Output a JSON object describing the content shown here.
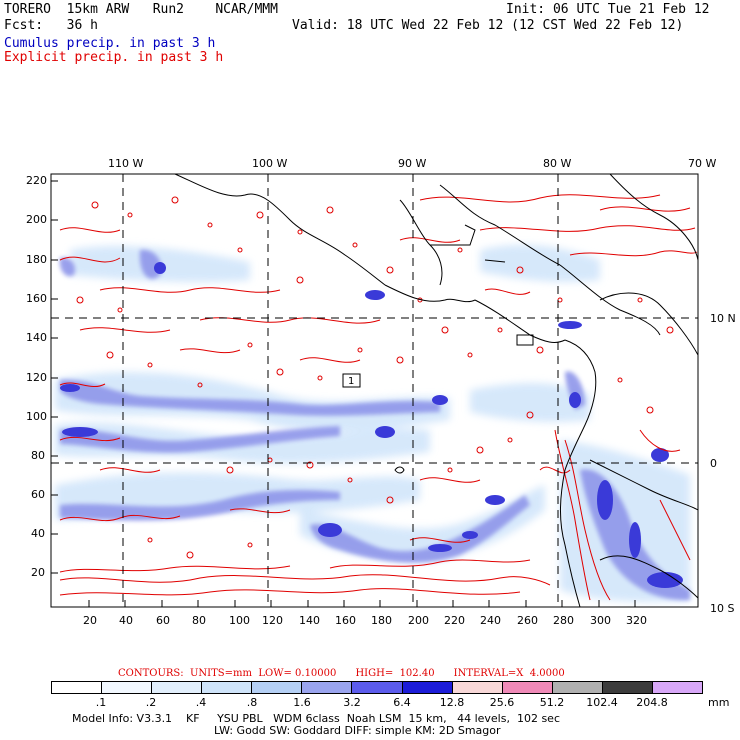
{
  "header": {
    "model": "TORERO  15km ARW   Run2    NCAR/MMM",
    "init": "Init: 06 UTC Tue 21 Feb 12",
    "fcst": "Fcst:   36 h",
    "valid": "Valid: 18 UTC Wed 22 Feb 12 (12 CST Wed 22 Feb 12)",
    "field1": "Cumulus precip. in past 3 h",
    "field2": "Explicit precip. in past 3 h"
  },
  "map": {
    "top_lon_labels": [
      "110 W",
      "100 W",
      "90 W",
      "80 W",
      "70 W"
    ],
    "right_lat_labels": [
      "10 N",
      "0",
      "10 S"
    ],
    "y_ticks": [
      "220",
      "200",
      "180",
      "160",
      "140",
      "120",
      "100",
      "80",
      "60",
      "40",
      "20"
    ],
    "x_ticks": [
      "20",
      "40",
      "60",
      "80",
      "100",
      "120",
      "140",
      "160",
      "180",
      "200",
      "220",
      "240",
      "260",
      "280",
      "300",
      "320"
    ],
    "box_label": "1",
    "colors": {
      "cumulus": "#3a3ad8",
      "explicit": "#e00000",
      "coast": "#000000"
    }
  },
  "contours": {
    "units": "CONTOURS:  UNITS=mm  LOW= 0.10000      HIGH=  102.40      INTERVAL=X  4.0000"
  },
  "legend": {
    "unit": "mm",
    "labels": [
      ".1",
      ".2",
      ".4",
      ".8",
      "1.6",
      "3.2",
      "6.4",
      "12.8",
      "25.6",
      "51.2",
      "102.4",
      "204.8"
    ],
    "colors": [
      "#ffffff",
      "#f2f8ff",
      "#e2effc",
      "#cfe4fa",
      "#b5d0f5",
      "#9aa4ee",
      "#5c5cec",
      "#1c1cd8",
      "#f8d8d8",
      "#f08ab8",
      "#b0b0b0",
      "#3c3c3c",
      "#d8a8f8"
    ]
  },
  "footer": {
    "line1": "Model Info: V3.3.1    KF     YSU PBL   WDM 6class  Noah LSM  15 km,   44 levels,  102 sec",
    "line2": "LW: Godd SW: Goddard DIFF: simple KM: 2D Smagor"
  }
}
